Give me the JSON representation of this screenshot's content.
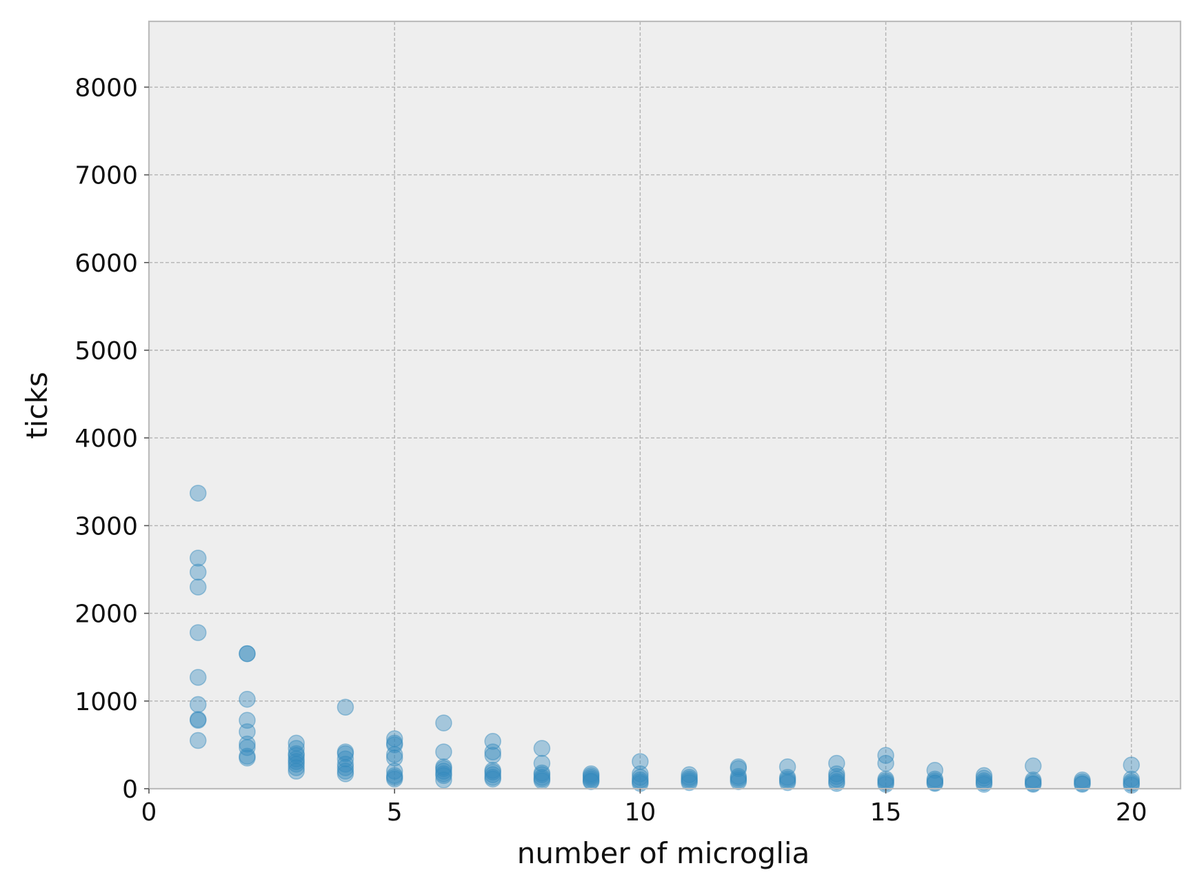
{
  "chart_data": {
    "type": "scatter",
    "xlabel": "number of microglia",
    "ylabel": "ticks",
    "xlim": [
      0,
      21
    ],
    "ylim": [
      0,
      8750
    ],
    "xticks": [
      0,
      5,
      10,
      15,
      20
    ],
    "yticks": [
      0,
      1000,
      2000,
      3000,
      4000,
      5000,
      6000,
      7000,
      8000
    ],
    "grid": true,
    "colors": {
      "background": "#eeeeee",
      "grid": "#b2b2b2",
      "spine": "#bcbcbc",
      "marker": "#348abd"
    },
    "series": [
      {
        "points": [
          [
            1,
            3370
          ],
          [
            1,
            2630
          ],
          [
            1,
            2470
          ],
          [
            1,
            2300
          ],
          [
            1,
            1780
          ],
          [
            1,
            1270
          ],
          [
            1,
            960
          ],
          [
            1,
            790
          ],
          [
            1,
            780
          ],
          [
            1,
            550
          ],
          [
            2,
            1540
          ],
          [
            2,
            1540
          ],
          [
            2,
            1020
          ],
          [
            2,
            780
          ],
          [
            2,
            650
          ],
          [
            2,
            510
          ],
          [
            2,
            470
          ],
          [
            2,
            370
          ],
          [
            2,
            350
          ],
          [
            3,
            520
          ],
          [
            3,
            460
          ],
          [
            3,
            400
          ],
          [
            3,
            380
          ],
          [
            3,
            340
          ],
          [
            3,
            310
          ],
          [
            3,
            280
          ],
          [
            3,
            240
          ],
          [
            3,
            200
          ],
          [
            4,
            930
          ],
          [
            4,
            420
          ],
          [
            4,
            400
          ],
          [
            4,
            340
          ],
          [
            4,
            280
          ],
          [
            4,
            240
          ],
          [
            4,
            200
          ],
          [
            4,
            170
          ],
          [
            5,
            570
          ],
          [
            5,
            520
          ],
          [
            5,
            500
          ],
          [
            5,
            390
          ],
          [
            5,
            350
          ],
          [
            5,
            200
          ],
          [
            5,
            150
          ],
          [
            5,
            130
          ],
          [
            5,
            110
          ],
          [
            6,
            750
          ],
          [
            6,
            420
          ],
          [
            6,
            250
          ],
          [
            6,
            230
          ],
          [
            6,
            200
          ],
          [
            6,
            170
          ],
          [
            6,
            150
          ],
          [
            6,
            100
          ],
          [
            7,
            540
          ],
          [
            7,
            420
          ],
          [
            7,
            380
          ],
          [
            7,
            210
          ],
          [
            7,
            190
          ],
          [
            7,
            160
          ],
          [
            7,
            130
          ],
          [
            7,
            110
          ],
          [
            8,
            460
          ],
          [
            8,
            290
          ],
          [
            8,
            180
          ],
          [
            8,
            160
          ],
          [
            8,
            130
          ],
          [
            8,
            110
          ],
          [
            8,
            90
          ],
          [
            9,
            170
          ],
          [
            9,
            150
          ],
          [
            9,
            130
          ],
          [
            9,
            110
          ],
          [
            9,
            90
          ],
          [
            9,
            80
          ],
          [
            10,
            310
          ],
          [
            10,
            170
          ],
          [
            10,
            130
          ],
          [
            10,
            100
          ],
          [
            10,
            80
          ],
          [
            10,
            60
          ],
          [
            11,
            160
          ],
          [
            11,
            130
          ],
          [
            11,
            110
          ],
          [
            11,
            90
          ],
          [
            11,
            70
          ],
          [
            12,
            250
          ],
          [
            12,
            230
          ],
          [
            12,
            140
          ],
          [
            12,
            120
          ],
          [
            12,
            100
          ],
          [
            12,
            80
          ],
          [
            13,
            250
          ],
          [
            13,
            130
          ],
          [
            13,
            110
          ],
          [
            13,
            90
          ],
          [
            13,
            70
          ],
          [
            14,
            290
          ],
          [
            14,
            170
          ],
          [
            14,
            140
          ],
          [
            14,
            110
          ],
          [
            14,
            80
          ],
          [
            14,
            60
          ],
          [
            15,
            380
          ],
          [
            15,
            290
          ],
          [
            15,
            110
          ],
          [
            15,
            90
          ],
          [
            15,
            70
          ],
          [
            15,
            50
          ],
          [
            16,
            210
          ],
          [
            16,
            110
          ],
          [
            16,
            90
          ],
          [
            16,
            70
          ],
          [
            16,
            60
          ],
          [
            17,
            150
          ],
          [
            17,
            120
          ],
          [
            17,
            90
          ],
          [
            17,
            70
          ],
          [
            17,
            50
          ],
          [
            18,
            260
          ],
          [
            18,
            100
          ],
          [
            18,
            80
          ],
          [
            18,
            60
          ],
          [
            18,
            50
          ],
          [
            19,
            100
          ],
          [
            19,
            80
          ],
          [
            19,
            60
          ],
          [
            19,
            50
          ],
          [
            20,
            270
          ],
          [
            20,
            110
          ],
          [
            20,
            80
          ],
          [
            20,
            60
          ],
          [
            20,
            40
          ]
        ]
      }
    ]
  }
}
